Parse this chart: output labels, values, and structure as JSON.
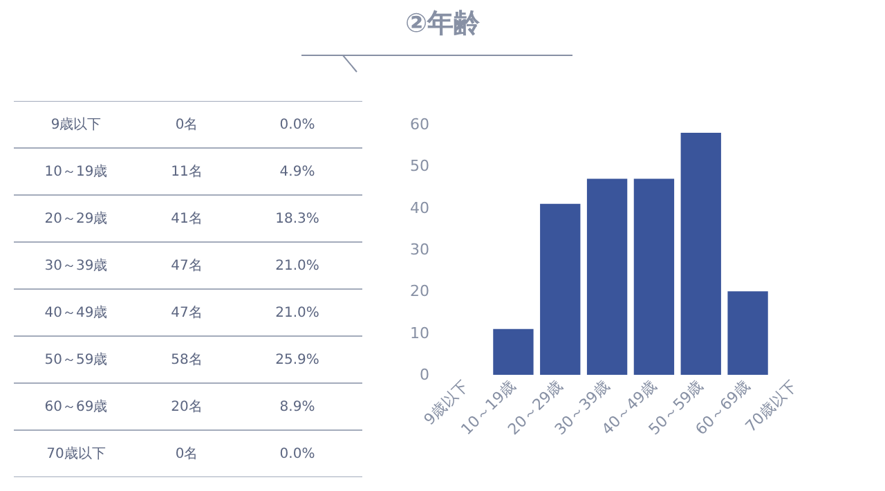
{
  "chart_data": [
    {
      "type": "other",
      "annotations": [
        "9歳以下",
        "0名",
        "0.0%",
        "10～19歳",
        "11名",
        "4.9%",
        "20～29歳",
        "41名",
        "18.3%",
        "30～39歳",
        "47名",
        "21.0%",
        "40～49歳",
        "47名",
        "21.0%",
        "50～59歳",
        "58名",
        "25.9%",
        "60～69歳",
        "20名",
        "8.9%",
        "70歳以下",
        "0名",
        "0.0%"
      ]
    },
    {
      "type": "bar",
      "title": "②年齢",
      "categories": [
        "9歳以下",
        "10～19歳",
        "20～29歳",
        "30～39歳",
        "40～49歳",
        "50～59歳",
        "60～69歳",
        "70歳以下"
      ],
      "values": [
        0,
        11,
        41,
        47,
        47,
        58,
        20,
        0
      ],
      "color": "#3a559b",
      "ylim": [
        0,
        60
      ],
      "yticks": [
        0,
        10,
        20,
        30,
        40,
        50,
        60
      ]
    }
  ]
}
